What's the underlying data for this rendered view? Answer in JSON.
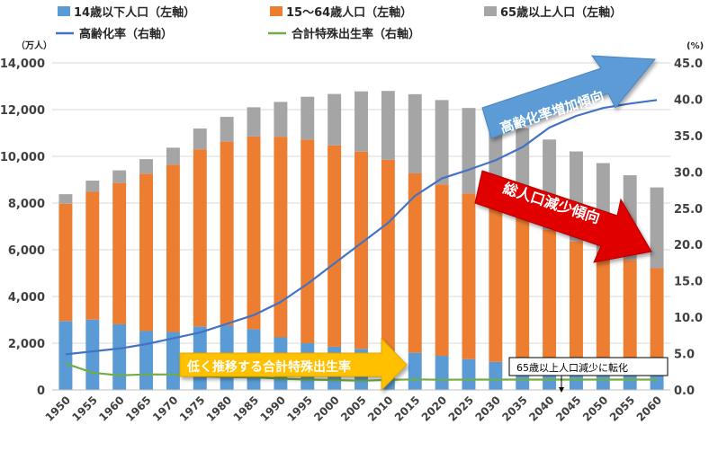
{
  "legend": {
    "items": [
      {
        "label": "14歳以下人口（左軸）",
        "color": "#5B9BD5",
        "kind": "box"
      },
      {
        "label": "15～64歳人口（左軸）",
        "color": "#ED7D31",
        "kind": "box"
      },
      {
        "label": "65歳以上人口（左軸）",
        "color": "#A5A5A5",
        "kind": "box"
      },
      {
        "label": "高齢化率（右軸）",
        "color": "#4472C4",
        "kind": "line"
      },
      {
        "label": "合計特殊出生率（右軸）",
        "color": "#70AD47",
        "kind": "line"
      }
    ]
  },
  "axes": {
    "left_unit": "（万人）",
    "right_unit": "(%)"
  },
  "annotations": {
    "aging_arrow": "高齢化率増加傾向",
    "population_arrow": "総人口減少傾向",
    "birthrate_arrow": "低く推移する合計特殊出生率",
    "callout": "65歳以上人口減少に転化"
  },
  "colors": {
    "young": "#5B9BD5",
    "working": "#ED7D31",
    "elderly": "#A5A5A5",
    "aging_rate": "#4472C4",
    "fertility": "#70AD47",
    "aging_arrow": "#5B9BD5",
    "population_arrow": "#E00000",
    "birthrate_arrow": "#FFC000"
  },
  "chart_data": {
    "type": "bar",
    "stacked": true,
    "categories": [
      "1950",
      "1955",
      "1960",
      "1965",
      "1970",
      "1975",
      "1980",
      "1985",
      "1990",
      "1995",
      "2000",
      "2005",
      "2010",
      "2015",
      "2020",
      "2025",
      "2030",
      "2035",
      "2040",
      "2045",
      "2050",
      "2055",
      "2060"
    ],
    "series": [
      {
        "name": "14歳以下人口（左軸）",
        "axis": "left",
        "values": [
          2950,
          3010,
          2810,
          2520,
          2480,
          2720,
          2750,
          2600,
          2250,
          2000,
          1850,
          1760,
          1680,
          1590,
          1460,
          1320,
          1200,
          1130,
          1070,
          1010,
          940,
          860,
          790
        ]
      },
      {
        "name": "15～64歳人口（左軸）",
        "axis": "left",
        "values": [
          5020,
          5470,
          6050,
          6740,
          7160,
          7580,
          7880,
          8250,
          8590,
          8720,
          8620,
          8440,
          8170,
          7680,
          7340,
          7090,
          6770,
          6340,
          5780,
          5350,
          5000,
          4710,
          4420
        ]
      },
      {
        "name": "65歳以上人口（左軸）",
        "axis": "left",
        "values": [
          410,
          480,
          540,
          620,
          730,
          890,
          1060,
          1250,
          1490,
          1830,
          2200,
          2580,
          2950,
          3390,
          3610,
          3660,
          3690,
          3740,
          3870,
          3850,
          3770,
          3620,
          3460
        ]
      },
      {
        "name": "高齢化率（右軸）",
        "axis": "right",
        "type": "line",
        "values": [
          4.9,
          5.3,
          5.7,
          6.3,
          7.1,
          7.9,
          9.1,
          10.3,
          12.1,
          14.6,
          17.4,
          20.2,
          23.0,
          26.7,
          29.1,
          30.3,
          31.6,
          33.4,
          36.1,
          37.7,
          38.8,
          39.4,
          39.9
        ]
      },
      {
        "name": "合計特殊出生率（右軸）",
        "axis": "right",
        "type": "line",
        "values": [
          3.65,
          2.37,
          2.0,
          2.14,
          2.13,
          1.91,
          1.75,
          1.76,
          1.54,
          1.42,
          1.36,
          1.26,
          1.39,
          1.45,
          1.4,
          1.42,
          1.42,
          1.42,
          1.42,
          1.42,
          1.42,
          1.42,
          1.42
        ]
      }
    ],
    "ylim_left": [
      0,
      14000
    ],
    "ylim_right": [
      0,
      45
    ],
    "yticks_left": [
      "0",
      "2,000",
      "4,000",
      "6,000",
      "8,000",
      "10,000",
      "12,000",
      "14,000"
    ],
    "yticks_right": [
      "0.0",
      "5.0",
      "10.0",
      "15.0",
      "20.0",
      "25.0",
      "30.0",
      "35.0",
      "40.0",
      "45.0"
    ],
    "grid": true,
    "legend_position": "top"
  }
}
